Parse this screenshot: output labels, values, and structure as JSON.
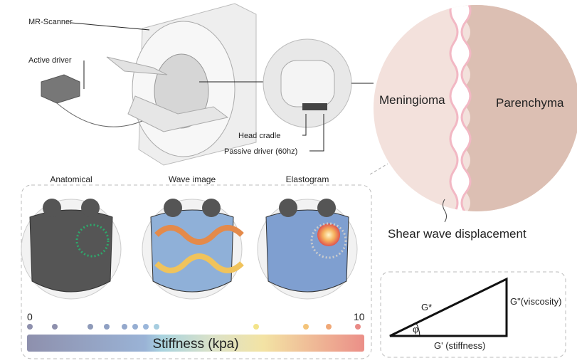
{
  "setup": {
    "scanner": "MR-Scanner",
    "active_driver": "Active driver",
    "head_cradle": "Head cradle",
    "passive_driver": "Passive driver (60hz)"
  },
  "zoom": {
    "left": "Meningioma",
    "right": "Parenchyma",
    "caption": "Shear wave displacement"
  },
  "panels": [
    "Anatomical",
    "Wave image",
    "Elastogram"
  ],
  "colorbar": {
    "min": "0",
    "max": "10",
    "label": "Stiffness (kpa)"
  },
  "triangle": {
    "hypotenuse": "G*",
    "vertical": "G\"(viscosity)",
    "angle": "φ",
    "horizontal": "G' (stiffness)"
  }
}
